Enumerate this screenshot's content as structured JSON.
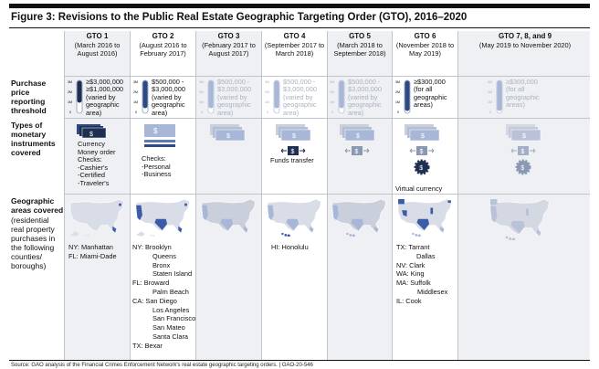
{
  "title": "Figure 3: Revisions to the Public Real Estate Geographic Targeting Order (GTO), 2016–2020",
  "row_labels": {
    "threshold": "Purchase price reporting threshold",
    "instruments": "Types of monetary instruments covered",
    "geo": "Geographic areas covered",
    "geo_sub": "(residential real property purchases in the following counties/ boroughs)"
  },
  "colors": {
    "dark_navy": "#1f2f52",
    "navy": "#2e4a86",
    "mid_blue": "#5f77b6",
    "light_blue": "#a8b6d8",
    "pale": "#c9cfdb",
    "grey_doc": "#8a98b4",
    "map_land": "#d9dde7",
    "map_highlight": "#3a5ca8"
  },
  "gauge_axis": {
    "top": "3M",
    "mid": "2M",
    "low": "1M",
    "zero": "0"
  },
  "columns": [
    {
      "id": "gto1",
      "name": "GTO 1",
      "period": "(March 2016 to August 2016)",
      "threshold_lines": [
        "≥$3,000,000",
        "≥$1,000,000",
        "(varied by",
        "geographic",
        "area)"
      ],
      "threshold_range_millions": [
        1,
        3
      ],
      "faded": false,
      "instruments": [
        "Currency",
        "Money order",
        "Checks:",
        "-Cashier's",
        "-Certified",
        "-Traveler's"
      ],
      "areas": [
        {
          "state": "NY:",
          "places": [
            "Manhattan"
          ]
        },
        {
          "state": "FL:",
          "places": [
            "Miami-Dade"
          ]
        }
      ]
    },
    {
      "id": "gto2",
      "name": "GTO 2",
      "period": "(August 2016 to February 2017)",
      "threshold_lines": [
        "$500,000 -",
        "$3,000,000",
        "(varied by",
        "geographic",
        "area)"
      ],
      "threshold_range_millions": [
        0.5,
        3
      ],
      "faded": false,
      "instruments": [
        "Checks:",
        "-Personal",
        "-Business"
      ],
      "areas": [
        {
          "state": "NY:",
          "places": [
            "Brooklyn",
            "Queens",
            "Bronx",
            "Staten Island"
          ]
        },
        {
          "state": "FL:",
          "places": [
            "Broward",
            "Palm Beach"
          ]
        },
        {
          "state": "CA:",
          "places": [
            "San Diego",
            "Los Angeles",
            "San Francisco",
            "San Mateo",
            "Santa Clara"
          ]
        },
        {
          "state": "TX:",
          "places": [
            "Bexar"
          ]
        }
      ]
    },
    {
      "id": "gto3",
      "name": "GTO 3",
      "period": "(February 2017 to August 2017)",
      "threshold_lines": [
        "$500,000 -",
        "$3,000,000",
        "(varied by",
        "geographic",
        "area)"
      ],
      "threshold_range_millions": [
        0.5,
        3
      ],
      "faded": true,
      "instruments": [],
      "areas": []
    },
    {
      "id": "gto4",
      "name": "GTO 4",
      "period": "(September 2017 to March 2018)",
      "threshold_lines": [
        "$500,000 -",
        "$3,000,000",
        "(varied by",
        "geographic",
        "area)"
      ],
      "threshold_range_millions": [
        0.5,
        3
      ],
      "faded": true,
      "instruments": [
        "Funds transfer"
      ],
      "areas": [
        {
          "state": "HI:",
          "places": [
            "Honolulu"
          ]
        }
      ]
    },
    {
      "id": "gto5",
      "name": "GTO 5",
      "period": "(March 2018 to September 2018)",
      "threshold_lines": [
        "$500,000 -",
        "$3,000,000",
        "(varied by",
        "geographic",
        "area)"
      ],
      "threshold_range_millions": [
        0.5,
        3
      ],
      "faded": true,
      "instruments": [],
      "areas": []
    },
    {
      "id": "gto6",
      "name": "GTO 6",
      "period": "(November 2018 to May 2019)",
      "threshold_lines": [
        "≥$300,000",
        "(for all",
        "geographic",
        "areas)"
      ],
      "threshold_range_millions": [
        0.3,
        0.3
      ],
      "faded": false,
      "instruments": [
        "Virtual currency"
      ],
      "areas": [
        {
          "state": "TX:",
          "places": [
            "Tarrant",
            "Dallas"
          ]
        },
        {
          "state": "NV:",
          "places": [
            "Clark"
          ]
        },
        {
          "state": "WA:",
          "places": [
            "King"
          ]
        },
        {
          "state": "MA:",
          "places": [
            "Suffolk",
            "Middlesex"
          ]
        },
        {
          "state": "IL:",
          "places": [
            "Cook"
          ]
        }
      ]
    },
    {
      "id": "gto789",
      "name": "GTO 7, 8, and 9",
      "period": "(May 2019 to November 2020)",
      "threshold_lines": [
        "≥$300,000",
        "(for all",
        "geographic",
        "areas)"
      ],
      "threshold_range_millions": [
        0.3,
        0.3
      ],
      "faded": true,
      "instruments": [],
      "areas": []
    }
  ],
  "source": "Source: GAO analysis of the Financial Crimes Enforcement Network's real estate geographic targeting orders.  |  GAO-20-546"
}
